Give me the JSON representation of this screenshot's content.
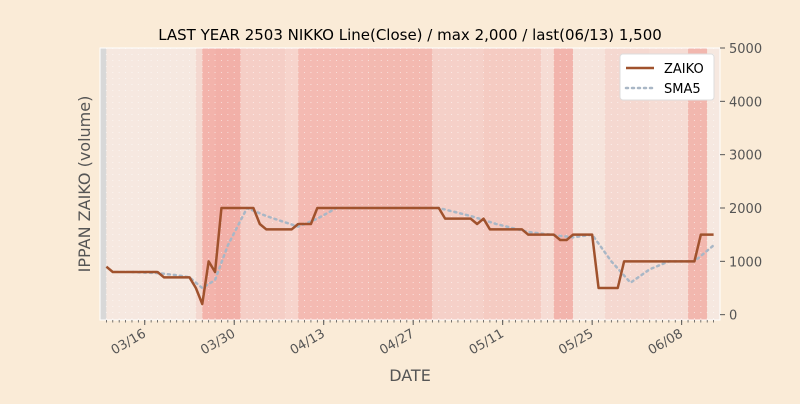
{
  "chart_data": {
    "type": "line",
    "title": "LAST YEAR 2503 NIKKO Line(Close) / max 2,000 / last(06/13) 1,500",
    "xlabel": "DATE",
    "ylabel": "IPPAN ZAIKO (volume)",
    "y_axis_side": "right",
    "ylim": [
      -100,
      5000
    ],
    "yticks": [
      0,
      1000,
      2000,
      3000,
      4000,
      5000
    ],
    "ytick_labels": [
      "0",
      "1000",
      "2000",
      "3000",
      "4000",
      "5000"
    ],
    "xlim": [
      "2024-03-09",
      "2024-06-14"
    ],
    "xticks": [
      "2024-03-16",
      "2024-03-30",
      "2024-04-13",
      "2024-04-27",
      "2024-05-11",
      "2024-05-25",
      "2024-06-08"
    ],
    "xtick_labels": [
      "03/16",
      "03/30",
      "04/13",
      "04/27",
      "05/11",
      "05/25",
      "06/08"
    ],
    "legend_position": "top-right",
    "background_color": "#faebd7",
    "plot_background": "#ffffff",
    "series": [
      {
        "name": "ZAIKO",
        "color": "#a0522d",
        "style": "solid",
        "points": [
          [
            "2024-03-10",
            900
          ],
          [
            "2024-03-11",
            800
          ],
          [
            "2024-03-12",
            800
          ],
          [
            "2024-03-13",
            800
          ],
          [
            "2024-03-14",
            800
          ],
          [
            "2024-03-15",
            800
          ],
          [
            "2024-03-18",
            800
          ],
          [
            "2024-03-19",
            700
          ],
          [
            "2024-03-20",
            700
          ],
          [
            "2024-03-21",
            700
          ],
          [
            "2024-03-22",
            700
          ],
          [
            "2024-03-23",
            700
          ],
          [
            "2024-03-24",
            500
          ],
          [
            "2024-03-25",
            200
          ],
          [
            "2024-03-26",
            1000
          ],
          [
            "2024-03-27",
            800
          ],
          [
            "2024-03-28",
            2000
          ],
          [
            "2024-03-29",
            2000
          ],
          [
            "2024-04-01",
            2000
          ],
          [
            "2024-04-02",
            2000
          ],
          [
            "2024-04-03",
            1700
          ],
          [
            "2024-04-04",
            1600
          ],
          [
            "2024-04-08",
            1600
          ],
          [
            "2024-04-09",
            1700
          ],
          [
            "2024-04-11",
            1700
          ],
          [
            "2024-04-12",
            2000
          ],
          [
            "2024-05-01",
            2000
          ],
          [
            "2024-05-02",
            1800
          ],
          [
            "2024-05-06",
            1800
          ],
          [
            "2024-05-07",
            1700
          ],
          [
            "2024-05-08",
            1800
          ],
          [
            "2024-05-09",
            1600
          ],
          [
            "2024-05-14",
            1600
          ],
          [
            "2024-05-15",
            1500
          ],
          [
            "2024-05-19",
            1500
          ],
          [
            "2024-05-20",
            1400
          ],
          [
            "2024-05-21",
            1400
          ],
          [
            "2024-05-22",
            1500
          ],
          [
            "2024-05-25",
            1500
          ],
          [
            "2024-05-26",
            500
          ],
          [
            "2024-05-29",
            500
          ],
          [
            "2024-05-30",
            1000
          ],
          [
            "2024-06-10",
            1000
          ],
          [
            "2024-06-11",
            1500
          ],
          [
            "2024-06-13",
            1500
          ]
        ]
      },
      {
        "name": "SMA5",
        "color": "#a9b7c6",
        "style": "dotted",
        "points": [
          [
            "2024-03-14",
            800
          ],
          [
            "2024-03-18",
            780
          ],
          [
            "2024-03-21",
            740
          ],
          [
            "2024-03-23",
            700
          ],
          [
            "2024-03-25",
            500
          ],
          [
            "2024-03-27",
            650
          ],
          [
            "2024-03-29",
            1300
          ],
          [
            "2024-04-01",
            2000
          ],
          [
            "2024-04-04",
            1850
          ],
          [
            "2024-04-09",
            1650
          ],
          [
            "2024-04-12",
            1800
          ],
          [
            "2024-04-15",
            2000
          ],
          [
            "2024-05-01",
            2000
          ],
          [
            "2024-05-06",
            1850
          ],
          [
            "2024-05-10",
            1700
          ],
          [
            "2024-05-15",
            1550
          ],
          [
            "2024-05-22",
            1450
          ],
          [
            "2024-05-25",
            1500
          ],
          [
            "2024-05-28",
            1000
          ],
          [
            "2024-05-31",
            600
          ],
          [
            "2024-06-03",
            850
          ],
          [
            "2024-06-06",
            1000
          ],
          [
            "2024-06-10",
            1000
          ],
          [
            "2024-06-13",
            1300
          ]
        ]
      }
    ],
    "background_bands": [
      [
        "2024-03-09",
        "2024-03-10",
        "#d8d8d8"
      ],
      [
        "2024-03-10",
        "2024-03-24",
        "#f6e8e0"
      ],
      [
        "2024-03-24",
        "2024-03-25",
        "#f4d8d0"
      ],
      [
        "2024-03-25",
        "2024-03-27",
        "#f3b3ab"
      ],
      [
        "2024-03-27",
        "2024-03-31",
        "#f2b0a8"
      ],
      [
        "2024-03-31",
        "2024-04-07",
        "#f5cec6"
      ],
      [
        "2024-04-07",
        "2024-04-09",
        "#f7d4cc"
      ],
      [
        "2024-04-09",
        "2024-04-20",
        "#f4bab2"
      ],
      [
        "2024-04-20",
        "2024-04-30",
        "#f3b9b0"
      ],
      [
        "2024-04-30",
        "2024-05-08",
        "#f5d0c8"
      ],
      [
        "2024-05-08",
        "2024-05-17",
        "#f5cbc2"
      ],
      [
        "2024-05-17",
        "2024-05-19",
        "#f6dcd4"
      ],
      [
        "2024-05-19",
        "2024-05-22",
        "#f2b4ac"
      ],
      [
        "2024-05-22",
        "2024-05-27",
        "#f6e4dc"
      ],
      [
        "2024-05-27",
        "2024-06-03",
        "#f5d8d0"
      ],
      [
        "2024-06-03",
        "2024-06-09",
        "#f6dcd4"
      ],
      [
        "2024-06-09",
        "2024-06-12",
        "#f2b7ae"
      ],
      [
        "2024-06-12",
        "2024-06-14",
        "#f6e8e0"
      ]
    ]
  }
}
